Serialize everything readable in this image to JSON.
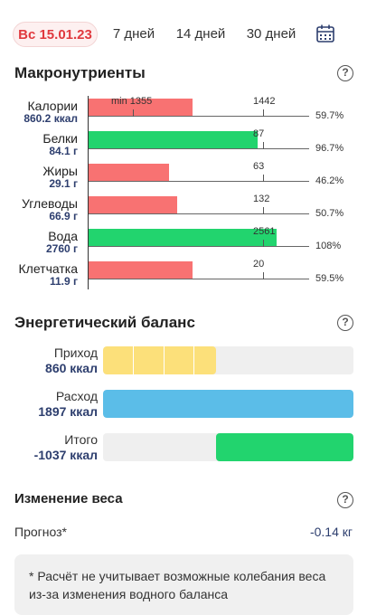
{
  "tabs": [
    {
      "label": "Вс 15.01.23",
      "active": true
    },
    {
      "label": "7 дней",
      "active": false
    },
    {
      "label": "14 дней",
      "active": false
    },
    {
      "label": "30 дней",
      "active": false
    }
  ],
  "calendar_icon": "calendar-icon",
  "macros": {
    "title": "Макронутриенты",
    "help": "?",
    "rows": [
      {
        "name": "Калории",
        "value": "860.2 ккал",
        "goal_min": "min 1355",
        "goal": "1442",
        "percent": "59.7%",
        "fill": 0.597,
        "color": "#f87272"
      },
      {
        "name": "Белки",
        "value": "84.1 г",
        "goal": "87",
        "percent": "96.7%",
        "fill": 0.967,
        "color": "#22d46e"
      },
      {
        "name": "Жиры",
        "value": "29.1 г",
        "goal": "63",
        "percent": "46.2%",
        "fill": 0.462,
        "color": "#f87272"
      },
      {
        "name": "Углеводы",
        "value": "66.9 г",
        "goal": "132",
        "percent": "50.7%",
        "fill": 0.507,
        "color": "#f87272"
      },
      {
        "name": "Вода",
        "value": "2760 г",
        "goal": "2561",
        "percent": "108%",
        "fill": 1.08,
        "color": "#22d46e"
      },
      {
        "name": "Клетчатка",
        "value": "11.9 г",
        "goal": "20",
        "percent": "59.5%",
        "fill": 0.595,
        "color": "#f87272"
      }
    ]
  },
  "energy": {
    "title": "Энергетический баланс",
    "help": "?",
    "income": {
      "name": "Приход",
      "value": "860 ккал",
      "fraction": 0.453
    },
    "expense": {
      "name": "Расход",
      "value": "1897 ккал",
      "fraction": 1.0
    },
    "total": {
      "name": "Итого",
      "value": "-1037 ккал",
      "fraction": 0.547
    }
  },
  "weight": {
    "title": "Изменение веса",
    "help": "?",
    "forecast_label": "Прогноз*",
    "forecast_value": "-0.14 кг",
    "note": "* Расчёт не учитывает возможные колебания веса из-за изменения водного баланса"
  },
  "colors": {
    "accent": "#e0393e",
    "red": "#f87272",
    "green": "#22d46e",
    "blue": "#5bbde8",
    "yellow": "#fce07a",
    "value_text": "#2d3e6e"
  }
}
